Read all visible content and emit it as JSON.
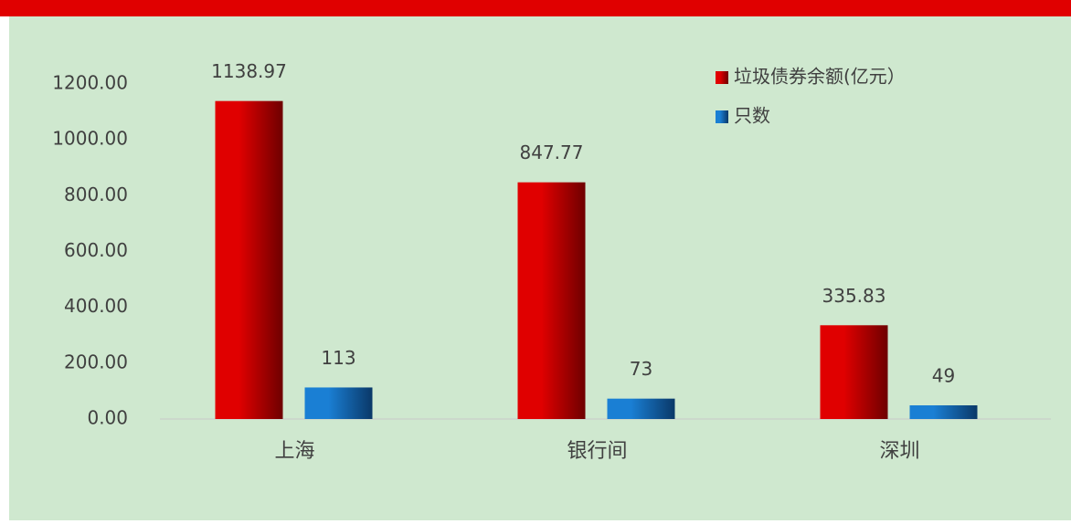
{
  "chart_data": {
    "type": "bar",
    "categories": [
      "上海",
      "银行间",
      "深圳"
    ],
    "series": [
      {
        "name": "垃圾债券余额(亿元）",
        "color": "#e00000",
        "values": [
          1138.97,
          847.77,
          335.83
        ]
      },
      {
        "name": "只数",
        "color": "#1a7fd4",
        "values": [
          113,
          73,
          49
        ]
      }
    ],
    "ylim": [
      0,
      1200
    ],
    "yticks": [
      {
        "value": 0,
        "label": "0.00"
      },
      {
        "value": 200,
        "label": "200.00"
      },
      {
        "value": 400,
        "label": "400.00"
      },
      {
        "value": 600,
        "label": "600.00"
      },
      {
        "value": 800,
        "label": "800.00"
      },
      {
        "value": 1000,
        "label": "1000.00"
      },
      {
        "value": 1200,
        "label": "1200.00"
      }
    ],
    "legend": "top-right"
  }
}
